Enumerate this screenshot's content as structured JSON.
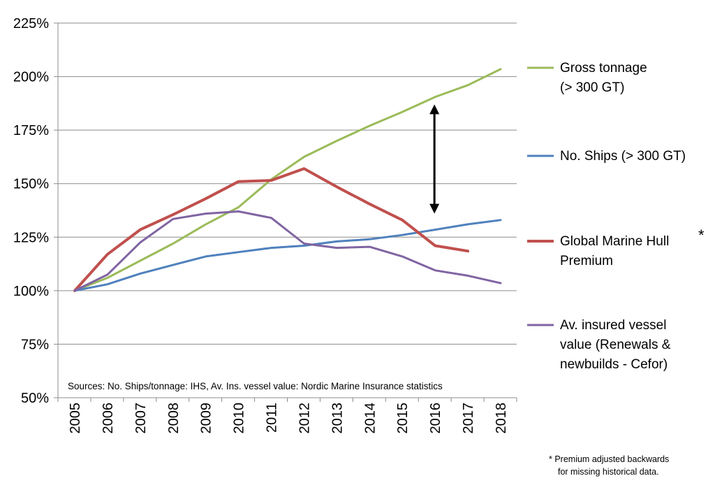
{
  "chart_data": {
    "type": "line",
    "x": [
      "2005",
      "2006",
      "2007",
      "2008",
      "2009",
      "2010",
      "2011",
      "2012",
      "2013",
      "2014",
      "2015",
      "2016",
      "2017",
      "2018"
    ],
    "ylim": [
      50,
      225
    ],
    "y_ticks": [
      "50%",
      "75%",
      "100%",
      "125%",
      "150%",
      "175%",
      "200%",
      "225%"
    ],
    "y_tick_values": [
      50,
      75,
      100,
      125,
      150,
      175,
      200,
      225
    ],
    "grid": true,
    "legend_position": "right",
    "series": [
      {
        "name": "Gross tonnage (> 300 GT)",
        "name_lines": [
          "Gross tonnage",
          "(> 300 GT)"
        ],
        "color": "#9BBB59",
        "values": [
          100,
          106,
          114,
          122,
          131,
          139,
          152,
          162.5,
          170,
          177,
          183.5,
          190.5,
          196,
          203.5
        ]
      },
      {
        "name": "No. Ships (> 300 GT)",
        "name_lines": [
          "No. Ships (> 300 GT)"
        ],
        "color": "#4F81BD",
        "values": [
          100,
          103,
          108,
          112,
          116,
          118,
          120,
          121,
          123,
          124,
          126,
          128.5,
          131,
          133
        ]
      },
      {
        "name": "Global Marine Hull Premium",
        "name_lines": [
          "Global Marine Hull",
          "Premium"
        ],
        "color": "#C0504D",
        "values": [
          100,
          117,
          128.5,
          135.5,
          143,
          151,
          151.5,
          157,
          148.5,
          140.5,
          133,
          121,
          118.5,
          null
        ]
      },
      {
        "name": "Av. insured vessel value (Renewals & newbuilds - Cefor)",
        "name_lines": [
          "Av. insured vessel",
          "value (Renewals &",
          "newbuilds - Cefor)"
        ],
        "color": "#8064A2",
        "values": [
          100,
          107.5,
          122.5,
          133.5,
          136,
          137,
          134,
          122,
          120,
          120.5,
          116,
          109.5,
          107,
          103.5
        ]
      }
    ],
    "annotations": {
      "double_arrow": {
        "x": "2016",
        "y_top": 187,
        "y_bottom": 136
      },
      "star": "*"
    },
    "source": "Sources: No. Ships/tonnage: IHS, Av. Ins. vessel value: Nordic Marine Insurance statistics",
    "footnote_lines": [
      "* Premium adjusted backwards",
      "for missing historical data."
    ]
  }
}
